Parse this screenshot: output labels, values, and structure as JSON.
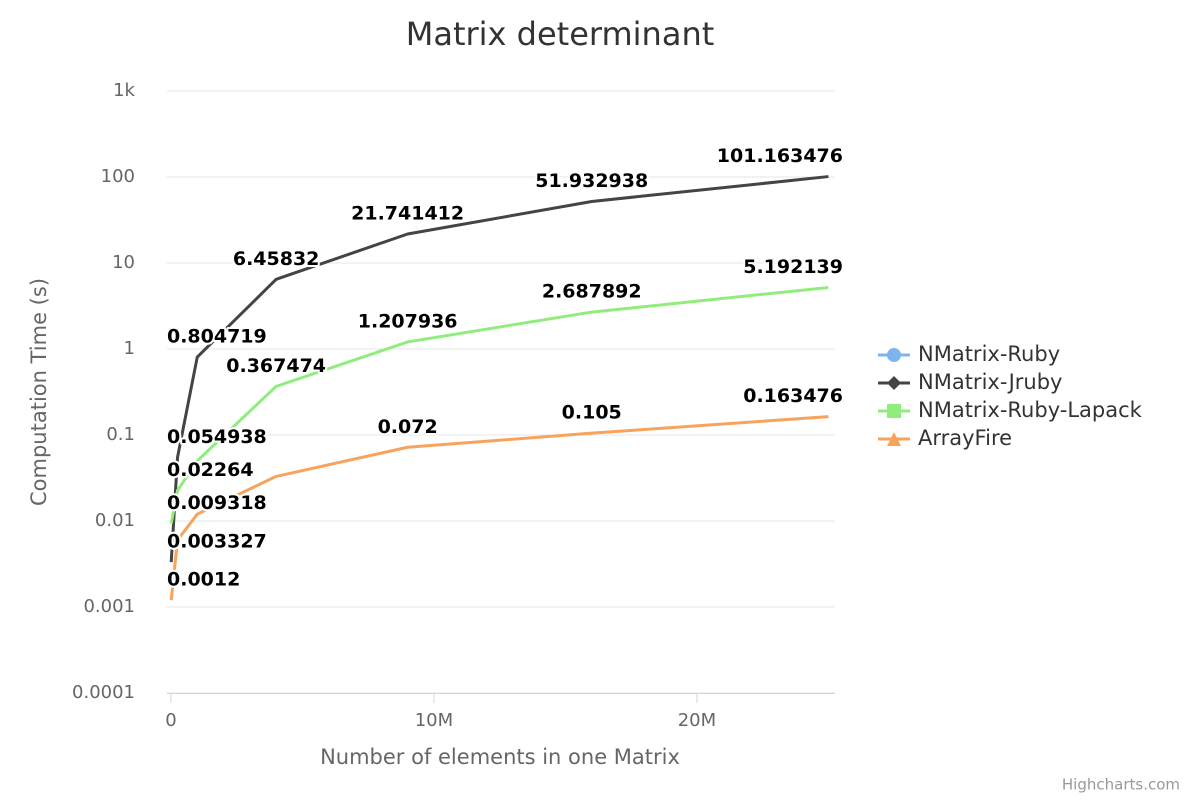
{
  "chart_data": {
    "type": "line",
    "title": "Matrix determinant",
    "x_label": "Number of elements in one Matrix",
    "y_label": "Computation Time (s)",
    "credits": "Highcharts.com",
    "log_y": true,
    "grid": true,
    "legend": "right",
    "x": [
      10000,
      250000,
      1000000,
      4000000,
      9000000,
      16000000,
      25000000
    ],
    "xlim": [
      -150000,
      25250000
    ],
    "xticks": [
      0,
      {
        "value": 10000000,
        "label": "10M"
      },
      {
        "value": 20000000,
        "label": "20M"
      }
    ],
    "ylim": [
      0.0001,
      1000
    ],
    "yticks": [
      0.0001,
      0.001,
      0.01,
      0.1,
      1,
      10,
      100,
      {
        "value": 1000,
        "label": "1k"
      }
    ],
    "series": [
      {
        "name": "NMatrix-Ruby",
        "color": "#7cb5ec",
        "marker": "circle",
        "values": [
          null,
          null,
          null,
          null,
          null,
          null,
          null
        ],
        "value_labels": [
          null,
          null,
          null,
          null,
          null,
          null,
          null
        ]
      },
      {
        "name": "NMatrix-Jruby",
        "color": "#434348",
        "marker": "diamond",
        "values": [
          0.003327,
          0.054938,
          0.804719,
          6.45832,
          21.741412,
          51.932938,
          101.163476
        ],
        "value_labels": [
          "0.003327",
          "0.054938",
          "0.804719",
          "6.45832",
          "21.741412",
          "51.932938",
          "101.163476"
        ]
      },
      {
        "name": "NMatrix-Ruby-Lapack",
        "color": "#90ed7d",
        "marker": "square",
        "values": [
          0.009318,
          0.02264,
          0.05,
          0.367474,
          1.207936,
          2.687892,
          5.192139
        ],
        "value_labels": [
          "0.009318",
          "0.02264",
          null,
          "0.367474",
          "1.207936",
          "2.687892",
          "5.192139"
        ]
      },
      {
        "name": "ArrayFire",
        "color": "#f7a35c",
        "marker": "triangle",
        "values": [
          0.0012,
          0.006,
          0.012,
          0.033,
          0.072,
          0.105,
          0.163476
        ],
        "value_labels": [
          "0.0012",
          null,
          null,
          null,
          "0.072",
          "0.105",
          "0.163476"
        ]
      }
    ]
  }
}
